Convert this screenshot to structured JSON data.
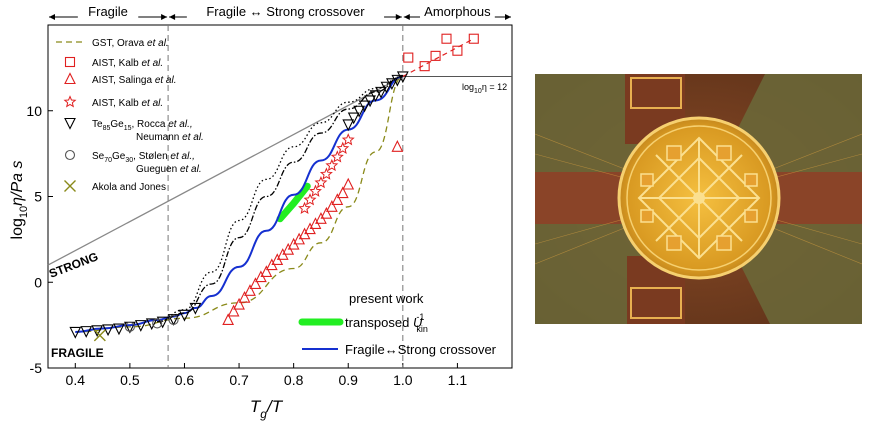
{
  "chart_data": {
    "type": "scatter",
    "xlabel": "T",
    "xlabel_sub": "g",
    "xlabel_tail": "/T",
    "ylabel": "log",
    "ylabel_sub": "10",
    "ylabel_tail": "η/Pa s",
    "xlim": [
      0.35,
      1.2
    ],
    "ylim": [
      -5,
      15
    ],
    "xticks": [
      "0.4",
      "0.5",
      "0.6",
      "0.7",
      "0.8",
      "0.9",
      "1.0",
      "1.1"
    ],
    "xtick_values": [
      0.4,
      0.5,
      0.6,
      0.7,
      0.8,
      0.9,
      1.0,
      1.1
    ],
    "yticks": [
      "-5",
      "0",
      "5",
      "10"
    ],
    "ytick_values": [
      -5,
      0,
      5,
      10
    ],
    "regions": [
      {
        "label": "Fragile",
        "from": 0.35,
        "to": 0.57
      },
      {
        "label": "Fragile ↔ Strong crossover",
        "from": 0.57,
        "to": 1.0
      },
      {
        "label": "Amorphous",
        "from": 1.0,
        "to": 1.2
      }
    ],
    "vlines": [
      0.57,
      1.0
    ],
    "annotations": {
      "strong": "STRONG",
      "fragile": "FRAGILE",
      "log12_pre": "log",
      "log12_sub": "10",
      "log12_post": "η = 12",
      "present_work": "present work"
    },
    "strong_line": {
      "x": [
        0.35,
        1.0
      ],
      "y": [
        1.0,
        12.0
      ]
    },
    "log12_line": {
      "x": [
        1.0,
        1.2
      ],
      "y": [
        12.0,
        12.0
      ]
    },
    "series": [
      {
        "name": "GST, Orava et al.",
        "legend_plain": "GST, Orava ",
        "legend_italic": "et al.",
        "style": "dashed",
        "color": "#8a8a1a",
        "x": [
          0.4,
          0.5,
          0.6,
          0.7,
          0.8,
          0.85,
          0.9,
          0.95,
          1.0
        ],
        "y": [
          -2.9,
          -2.6,
          -2.1,
          -1.2,
          0.8,
          2.3,
          4.4,
          7.6,
          12.0
        ]
      },
      {
        "name": "AIST, Kalb et al.",
        "legend_plain": "AIST, Kalb ",
        "legend_italic": "et al.",
        "marker": "square",
        "color": "#e02020",
        "x": [
          1.01,
          1.04,
          1.06,
          1.08,
          1.1,
          1.13
        ],
        "y": [
          13.1,
          12.6,
          13.2,
          14.2,
          13.5,
          14.2
        ]
      },
      {
        "name": "AIST, Salinga et al.",
        "legend_plain": "AIST, Salinga ",
        "legend_italic": "et al.",
        "marker": "triangle",
        "color": "#e02020",
        "x": [
          0.68,
          0.69,
          0.7,
          0.71,
          0.72,
          0.73,
          0.74,
          0.75,
          0.76,
          0.77,
          0.78,
          0.79,
          0.8,
          0.81,
          0.82,
          0.83,
          0.84,
          0.85,
          0.86,
          0.87,
          0.88,
          0.89,
          0.9,
          0.99
        ],
        "y": [
          -2.2,
          -1.7,
          -1.3,
          -0.9,
          -0.5,
          -0.1,
          0.3,
          0.6,
          1.0,
          1.3,
          1.6,
          1.9,
          2.2,
          2.5,
          2.8,
          3.1,
          3.4,
          3.7,
          4.0,
          4.4,
          4.8,
          5.2,
          5.7,
          7.9
        ]
      },
      {
        "name": "AIST, Kalb et al.",
        "legend_plain": "AIST, Kalb ",
        "legend_italic": "et al.",
        "marker": "star",
        "color": "#e02020",
        "x": [
          0.82,
          0.83,
          0.84,
          0.85,
          0.86,
          0.87,
          0.88,
          0.89,
          0.9
        ],
        "y": [
          4.3,
          4.8,
          5.3,
          5.8,
          6.3,
          6.8,
          7.3,
          7.8,
          8.3
        ]
      },
      {
        "name": "Te85Ge15, Rocca et al., Neumann et al.",
        "legend_line1_pre": "Te",
        "legend_sub1": "85",
        "legend_mid": "Ge",
        "legend_sub2": "15",
        "legend_line1_post": ", Rocca ",
        "legend_line1_italic": "et al.,",
        "legend_line2_plain": "Neumann ",
        "legend_line2_italic": "et al.",
        "marker": "tri_down",
        "color": "#000000",
        "x": [
          0.4,
          0.42,
          0.44,
          0.46,
          0.48,
          0.5,
          0.52,
          0.54,
          0.56,
          0.58,
          0.6,
          0.62,
          0.9,
          0.91,
          0.92,
          0.93,
          0.94,
          0.95,
          0.96,
          0.97,
          0.98,
          0.99,
          1.0
        ],
        "y": [
          -2.9,
          -2.85,
          -2.8,
          -2.75,
          -2.7,
          -2.6,
          -2.5,
          -2.4,
          -2.3,
          -2.15,
          -1.9,
          -1.5,
          9.2,
          9.6,
          10.0,
          10.3,
          10.6,
          10.9,
          11.1,
          11.4,
          11.6,
          11.8,
          12.0
        ]
      },
      {
        "name": "Se70Ge30, Stølen et al., Gueguen et al.",
        "legend_line1_pre": "Se",
        "legend_sub1": "70",
        "legend_mid": "Ge",
        "legend_sub2": "30",
        "legend_line1_post": ", Stølen ",
        "legend_line1_italic": "et al.,",
        "legend_line2_plain": "Gueguen ",
        "legend_line2_italic": "et al.",
        "marker": "circle",
        "color": "#555555",
        "x": [
          0.5,
          0.55,
          0.58
        ],
        "y": [
          -2.6,
          -2.4,
          -2.2
        ]
      },
      {
        "name": "Akola and Jones",
        "legend_plain": "Akola and Jones",
        "marker": "x",
        "color": "#8a8a1a",
        "x": [
          0.445
        ],
        "y": [
          -3.1
        ]
      },
      {
        "name": "transposed U_kin^-1",
        "legend_plain": "transposed ",
        "legend_italic": "U",
        "legend_sub": "kin",
        "legend_sup": "-1",
        "style": "thick",
        "color": "#22ee22",
        "x": [
          0.775,
          0.8,
          0.825
        ],
        "y": [
          3.7,
          4.6,
          5.6
        ]
      },
      {
        "name": "Fragile↔Strong crossover",
        "legend_plain": "Fragile↔Strong crossover",
        "style": "solid",
        "color": "#1530d0",
        "x": [
          0.4,
          0.45,
          0.5,
          0.55,
          0.58,
          0.6,
          0.62,
          0.65,
          0.7,
          0.75,
          0.8,
          0.85,
          0.9,
          0.95,
          1.0
        ],
        "y": [
          -2.9,
          -2.7,
          -2.5,
          -2.2,
          -2.0,
          -1.8,
          -1.5,
          -0.8,
          0.9,
          3.0,
          5.1,
          7.1,
          8.9,
          10.6,
          12.0
        ]
      },
      {
        "name": "dotted model A",
        "style": "dotted",
        "color": "#000000",
        "x": [
          0.55,
          0.6,
          0.65,
          0.7,
          0.75,
          0.8,
          0.85,
          0.9,
          0.95,
          1.0
        ],
        "y": [
          -2.3,
          -1.6,
          0.6,
          3.6,
          6.0,
          7.9,
          9.3,
          10.5,
          11.3,
          12.0
        ]
      },
      {
        "name": "dotted model B",
        "style": "dashdot",
        "color": "#000000",
        "x": [
          0.55,
          0.6,
          0.65,
          0.7,
          0.75,
          0.8,
          0.85,
          0.9,
          0.95,
          1.0
        ],
        "y": [
          -2.3,
          -1.8,
          -0.1,
          2.6,
          5.0,
          7.0,
          8.7,
          10.1,
          11.1,
          12.0
        ]
      }
    ]
  }
}
